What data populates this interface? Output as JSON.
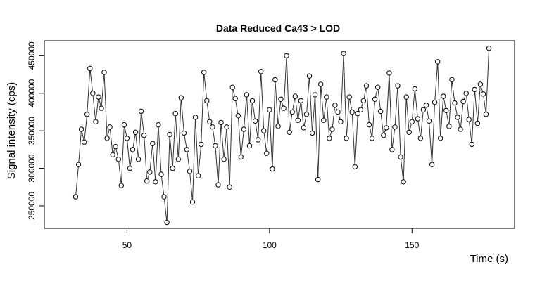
{
  "chart_data": {
    "type": "line",
    "title": "Data Reduced Ca43 > LOD",
    "xlabel": "Time (s)",
    "ylabel": "Signal intensity (cps)",
    "xlim": [
      21,
      186
    ],
    "ylim": [
      220000,
      470000
    ],
    "x_ticks": [
      50,
      100,
      150
    ],
    "x_tick_labels": [
      "50",
      "100",
      "150"
    ],
    "y_ticks": [
      250000,
      300000,
      350000,
      400000,
      450000
    ],
    "y_tick_labels": [
      "250000",
      "300000",
      "350000",
      "400000",
      "450000"
    ],
    "grid": false,
    "legend": "none",
    "markers": "open-circle",
    "line_color": "#333333",
    "series": [
      {
        "x": [
          32,
          33,
          34,
          35,
          36,
          37,
          38,
          39,
          40,
          41,
          42,
          43,
          44,
          45,
          46,
          47,
          48,
          49,
          50,
          51,
          52,
          53,
          54,
          55,
          56,
          57,
          58,
          59,
          60,
          61,
          62,
          63,
          64,
          65,
          66,
          67,
          68,
          69,
          70,
          71,
          72,
          73,
          74,
          75,
          76,
          77,
          78,
          79,
          80,
          81,
          82,
          83,
          84,
          85,
          86,
          87,
          88,
          89,
          90,
          91,
          92,
          93,
          94,
          95,
          96,
          97,
          98,
          99,
          100,
          101,
          102,
          103,
          104,
          105,
          106,
          107,
          108,
          109,
          110,
          111,
          112,
          113,
          114,
          115,
          116,
          117,
          118,
          119,
          120,
          121,
          122,
          123,
          124,
          125,
          126,
          127,
          128,
          129,
          130,
          131,
          132,
          133,
          134,
          135,
          136,
          137,
          138,
          139,
          140,
          141,
          142,
          143,
          144,
          145,
          146,
          147,
          148,
          149,
          150,
          151,
          152,
          153,
          154,
          155,
          156,
          157,
          158,
          159,
          160,
          161,
          162,
          163,
          164,
          165,
          166,
          167,
          168,
          169,
          170,
          171,
          172,
          173,
          174,
          175,
          176,
          177
        ],
        "y": [
          262000,
          305000,
          352000,
          335000,
          372000,
          433000,
          400000,
          362000,
          395000,
          380000,
          428000,
          340000,
          355000,
          318000,
          329000,
          312000,
          277000,
          358000,
          340000,
          300000,
          325000,
          348000,
          312000,
          376000,
          344000,
          283000,
          295000,
          333000,
          282000,
          358000,
          292000,
          262000,
          228000,
          345000,
          300000,
          373000,
          312000,
          394000,
          347000,
          325000,
          296000,
          255000,
          368000,
          290000,
          332000,
          428000,
          390000,
          362000,
          355000,
          330000,
          278000,
          361000,
          312000,
          355000,
          275000,
          408000,
          393000,
          370000,
          315000,
          352000,
          398000,
          330000,
          390000,
          363000,
          338000,
          429000,
          350000,
          320000,
          378000,
          299000,
          418000,
          356000,
          392000,
          380000,
          450000,
          348000,
          375000,
          396000,
          364000,
          390000,
          354000,
          372000,
          423000,
          347000,
          398000,
          285000,
          412000,
          364000,
          395000,
          340000,
          352000,
          384000,
          375000,
          362000,
          453000,
          340000,
          395000,
          375000,
          302000,
          373000,
          378000,
          390000,
          410000,
          358000,
          340000,
          392000,
          408000,
          376000,
          344000,
          354000,
          427000,
          325000,
          355000,
          410000,
          315000,
          282000,
          395000,
          348000,
          362000,
          406000,
          366000,
          340000,
          378000,
          384000,
          363000,
          305000,
          388000,
          442000,
          340000,
          396000,
          377000,
          356000,
          418000,
          387000,
          368000,
          352000,
          389000,
          400000,
          365000,
          332000,
          405000,
          360000,
          412000,
          399000,
          372000,
          460000
        ],
        "marker": true
      }
    ]
  }
}
